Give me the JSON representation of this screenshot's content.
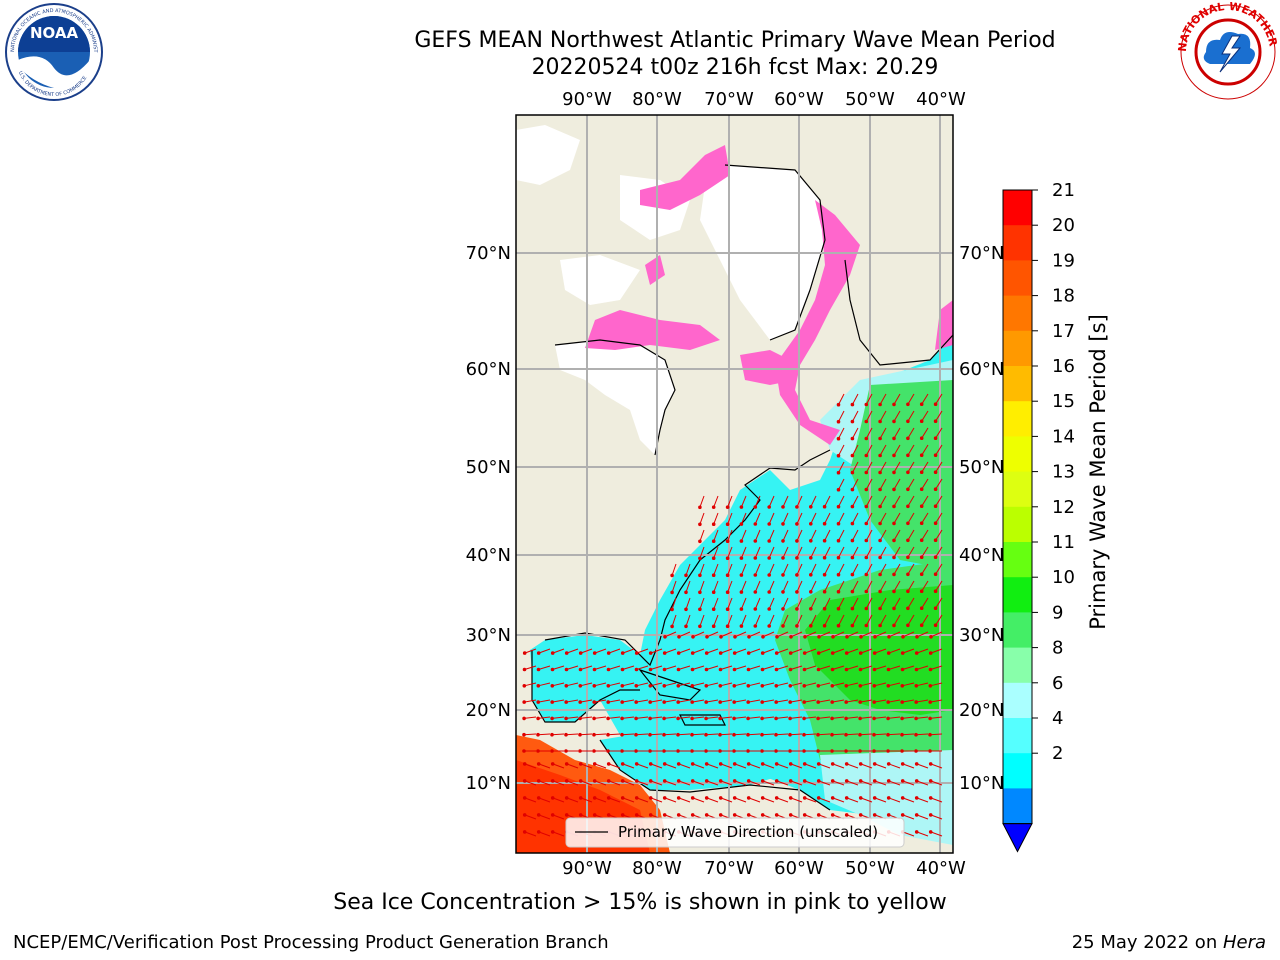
{
  "header": {
    "title_line1": "GEFS MEAN Northwest Atlantic Primary Wave Mean Period",
    "title_line2": "20220524 t00z 216h fcst   Max: 20.29"
  },
  "logos": {
    "noaa_text": "NOAA",
    "noaa_ring": "NATIONAL OCEANIC AND ATMOSPHERIC ADMINISTRATION",
    "noaa_ring_bottom": "U.S. DEPARTMENT OF COMMERCE",
    "nws_ring": "NATIONAL WEATHER SERVICE"
  },
  "map": {
    "lon_labels": [
      "90°W",
      "80°W",
      "70°W",
      "60°W",
      "50°W",
      "40°W"
    ],
    "lat_labels": [
      "70°N",
      "60°N",
      "50°N",
      "40°N",
      "30°N",
      "20°N",
      "10°N"
    ],
    "legend_label": "Primary Wave Direction (unscaled)",
    "colors": {
      "land": "#efedde",
      "ice_free": "#ffffff",
      "ice": "#ff66cc",
      "arrow": "#e00000",
      "grid": "#b0b0b0"
    }
  },
  "colorbar": {
    "label": "Primary Wave Mean Period [s]",
    "ticks": [
      "21",
      "20",
      "19",
      "18",
      "17",
      "16",
      "15",
      "14",
      "13",
      "12",
      "11",
      "10",
      "9",
      "8",
      "6",
      "4",
      "2"
    ],
    "colors": [
      "#ff0000",
      "#ff3300",
      "#ff5500",
      "#ff7700",
      "#ff9900",
      "#ffbb00",
      "#ffee00",
      "#eeff00",
      "#ddff11",
      "#bbff00",
      "#66ff11",
      "#11ee11",
      "#44ee66",
      "#88ffaa",
      "#aaffff",
      "#55ffff",
      "#00ffff",
      "#0088ff"
    ],
    "extend_color": "#0000ff"
  },
  "caption": "Sea Ice Concentration > 15% is shown in pink to yellow",
  "footer": {
    "left": "NCEP/EMC/Verification Post Processing Product Generation Branch",
    "date": "25 May 2022 on ",
    "machine": "Hera"
  }
}
